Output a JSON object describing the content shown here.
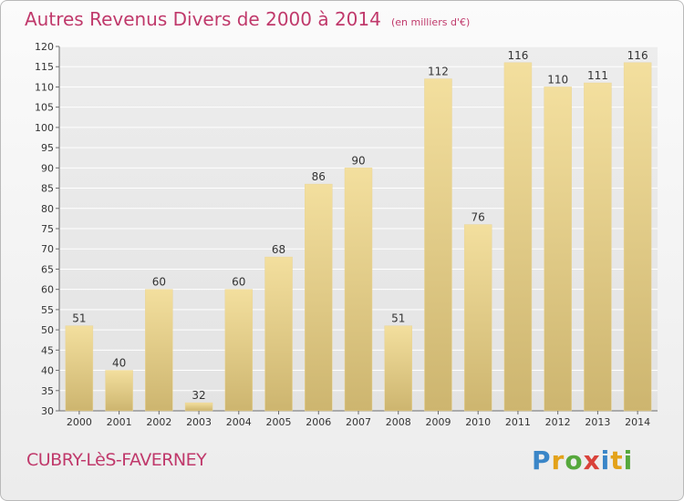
{
  "header": {
    "title": "Autres Revenus Divers de 2000 à 2014",
    "unit": "(en milliers d'€)"
  },
  "footer": {
    "commune": "CUBRY-LèS-FAVERNEY",
    "logo_text": "Proxiti",
    "logo_colors": [
      "#3a86c8",
      "#e3a21a",
      "#56a83c",
      "#d9423a",
      "#3a86c8",
      "#e3a21a",
      "#56a83c"
    ]
  },
  "colors": {
    "title": "#c0396b",
    "bar_light": "#f3df9e",
    "bar_dark": "#cdb56f",
    "grid": "#ffffff",
    "axis": "#6d6d6d"
  },
  "chart_data": {
    "type": "bar",
    "categories": [
      "2000",
      "2001",
      "2002",
      "2003",
      "2004",
      "2005",
      "2006",
      "2007",
      "2008",
      "2009",
      "2010",
      "2011",
      "2012",
      "2013",
      "2014"
    ],
    "values": [
      51,
      40,
      60,
      32,
      60,
      68,
      86,
      90,
      51,
      112,
      76,
      116,
      110,
      111,
      116
    ],
    "data_labels": [
      "51",
      "40",
      "60",
      "32",
      "60",
      "68",
      "86",
      "90",
      "51",
      "112",
      "76",
      "116",
      "110",
      "111",
      "116"
    ],
    "ylim": [
      30,
      120
    ],
    "yticks": [
      30,
      35,
      40,
      45,
      50,
      55,
      60,
      65,
      70,
      75,
      80,
      85,
      90,
      95,
      100,
      105,
      110,
      115,
      120
    ],
    "grid": true,
    "xlabel": "",
    "ylabel": ""
  }
}
